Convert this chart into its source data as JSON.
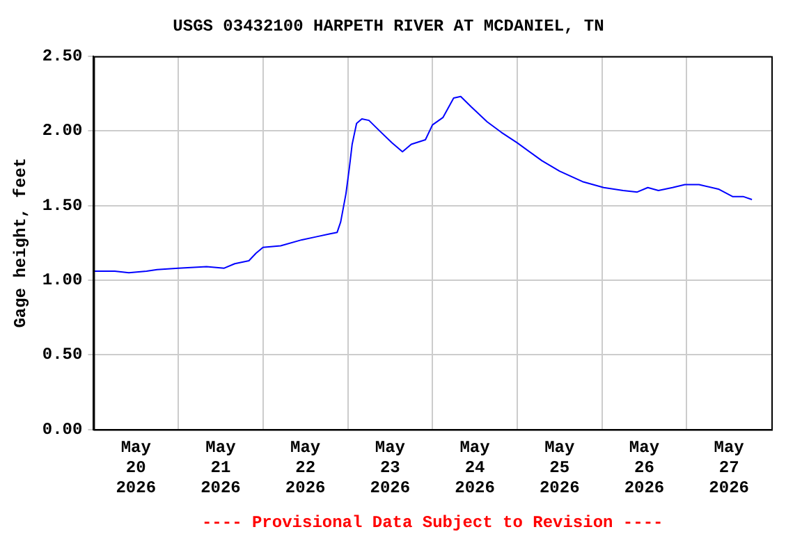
{
  "chart_data": {
    "type": "line",
    "title": "USGS 03432100 HARPETH RIVER AT MCDANIEL, TN",
    "ylabel": "Gage height, feet",
    "annotations": [
      "---- Provisional Data Subject to Revision ----"
    ],
    "x": [
      "2026-05-20T00:00",
      "2026-05-20T06:00",
      "2026-05-20T10:00",
      "2026-05-20T15:00",
      "2026-05-20T18:00",
      "2026-05-21T00:00",
      "2026-05-21T08:00",
      "2026-05-21T13:00",
      "2026-05-21T16:00",
      "2026-05-21T20:00",
      "2026-05-21T22:00",
      "2026-05-22T00:00",
      "2026-05-22T05:00",
      "2026-05-22T11:00",
      "2026-05-22T15:00",
      "2026-05-22T19:00",
      "2026-05-22T21:00",
      "2026-05-22T22:00",
      "2026-05-22T23:30",
      "2026-05-23T00:30",
      "2026-05-23T01:15",
      "2026-05-23T02:30",
      "2026-05-23T04:00",
      "2026-05-23T06:00",
      "2026-05-23T09:00",
      "2026-05-23T12:30",
      "2026-05-23T15:30",
      "2026-05-23T18:00",
      "2026-05-23T22:00",
      "2026-05-24T00:00",
      "2026-05-24T03:00",
      "2026-05-24T06:00",
      "2026-05-24T08:00",
      "2026-05-24T11:00",
      "2026-05-24T15:30",
      "2026-05-24T19:30",
      "2026-05-25T00:00",
      "2026-05-25T07:00",
      "2026-05-25T12:00",
      "2026-05-25T18:30",
      "2026-05-26T00:30",
      "2026-05-26T06:00",
      "2026-05-26T10:00",
      "2026-05-26T13:00",
      "2026-05-26T16:00",
      "2026-05-26T20:00",
      "2026-05-26T23:30",
      "2026-05-27T03:30",
      "2026-05-27T09:00",
      "2026-05-27T13:00",
      "2026-05-27T16:00",
      "2026-05-27T18:30"
    ],
    "series": [
      {
        "color": "#0000ff",
        "values": [
          1.06,
          1.06,
          1.05,
          1.06,
          1.07,
          1.08,
          1.09,
          1.08,
          1.11,
          1.13,
          1.18,
          1.22,
          1.23,
          1.27,
          1.29,
          1.31,
          1.32,
          1.39,
          1.58,
          1.76,
          1.91,
          2.05,
          2.08,
          2.07,
          2.0,
          1.92,
          1.86,
          1.91,
          1.94,
          2.04,
          2.09,
          2.22,
          2.23,
          2.16,
          2.06,
          1.99,
          1.92,
          1.8,
          1.73,
          1.66,
          1.62,
          1.6,
          1.59,
          1.62,
          1.6,
          1.62,
          1.64,
          1.64,
          1.61,
          1.56,
          1.56,
          1.54
        ]
      }
    ],
    "xlim": [
      "2026-05-20T00:00",
      "2026-05-28T00:00"
    ],
    "xticks": [
      {
        "value": "2026-05-20T12:00",
        "label": "May\n20\n2026"
      },
      {
        "value": "2026-05-21T00:00",
        "label": null
      },
      {
        "value": "2026-05-21T12:00",
        "label": "May\n21\n2026"
      },
      {
        "value": "2026-05-22T00:00",
        "label": null
      },
      {
        "value": "2026-05-22T12:00",
        "label": "May\n22\n2026"
      },
      {
        "value": "2026-05-23T00:00",
        "label": null
      },
      {
        "value": "2026-05-23T12:00",
        "label": "May\n23\n2026"
      },
      {
        "value": "2026-05-24T00:00",
        "label": null
      },
      {
        "value": "2026-05-24T12:00",
        "label": "May\n24\n2026"
      },
      {
        "value": "2026-05-25T00:00",
        "label": null
      },
      {
        "value": "2026-05-25T12:00",
        "label": "May\n25\n2026"
      },
      {
        "value": "2026-05-26T00:00",
        "label": null
      },
      {
        "value": "2026-05-26T12:00",
        "label": "May\n26\n2026"
      },
      {
        "value": "2026-05-27T00:00",
        "label": null
      },
      {
        "value": "2026-05-27T12:00",
        "label": "May\n27\n2026"
      }
    ],
    "ylim": [
      0,
      2.5
    ],
    "yticks": [
      {
        "value": 0,
        "label": "0.00"
      },
      {
        "value": 0.5,
        "label": "0.50"
      },
      {
        "value": 1,
        "label": "1.00"
      },
      {
        "value": 1.5,
        "label": "1.50"
      },
      {
        "value": 2,
        "label": "2.00"
      },
      {
        "value": 2.5,
        "label": "2.50"
      }
    ],
    "grid": true,
    "legend": false,
    "marker": "none",
    "line_style": "solid"
  }
}
